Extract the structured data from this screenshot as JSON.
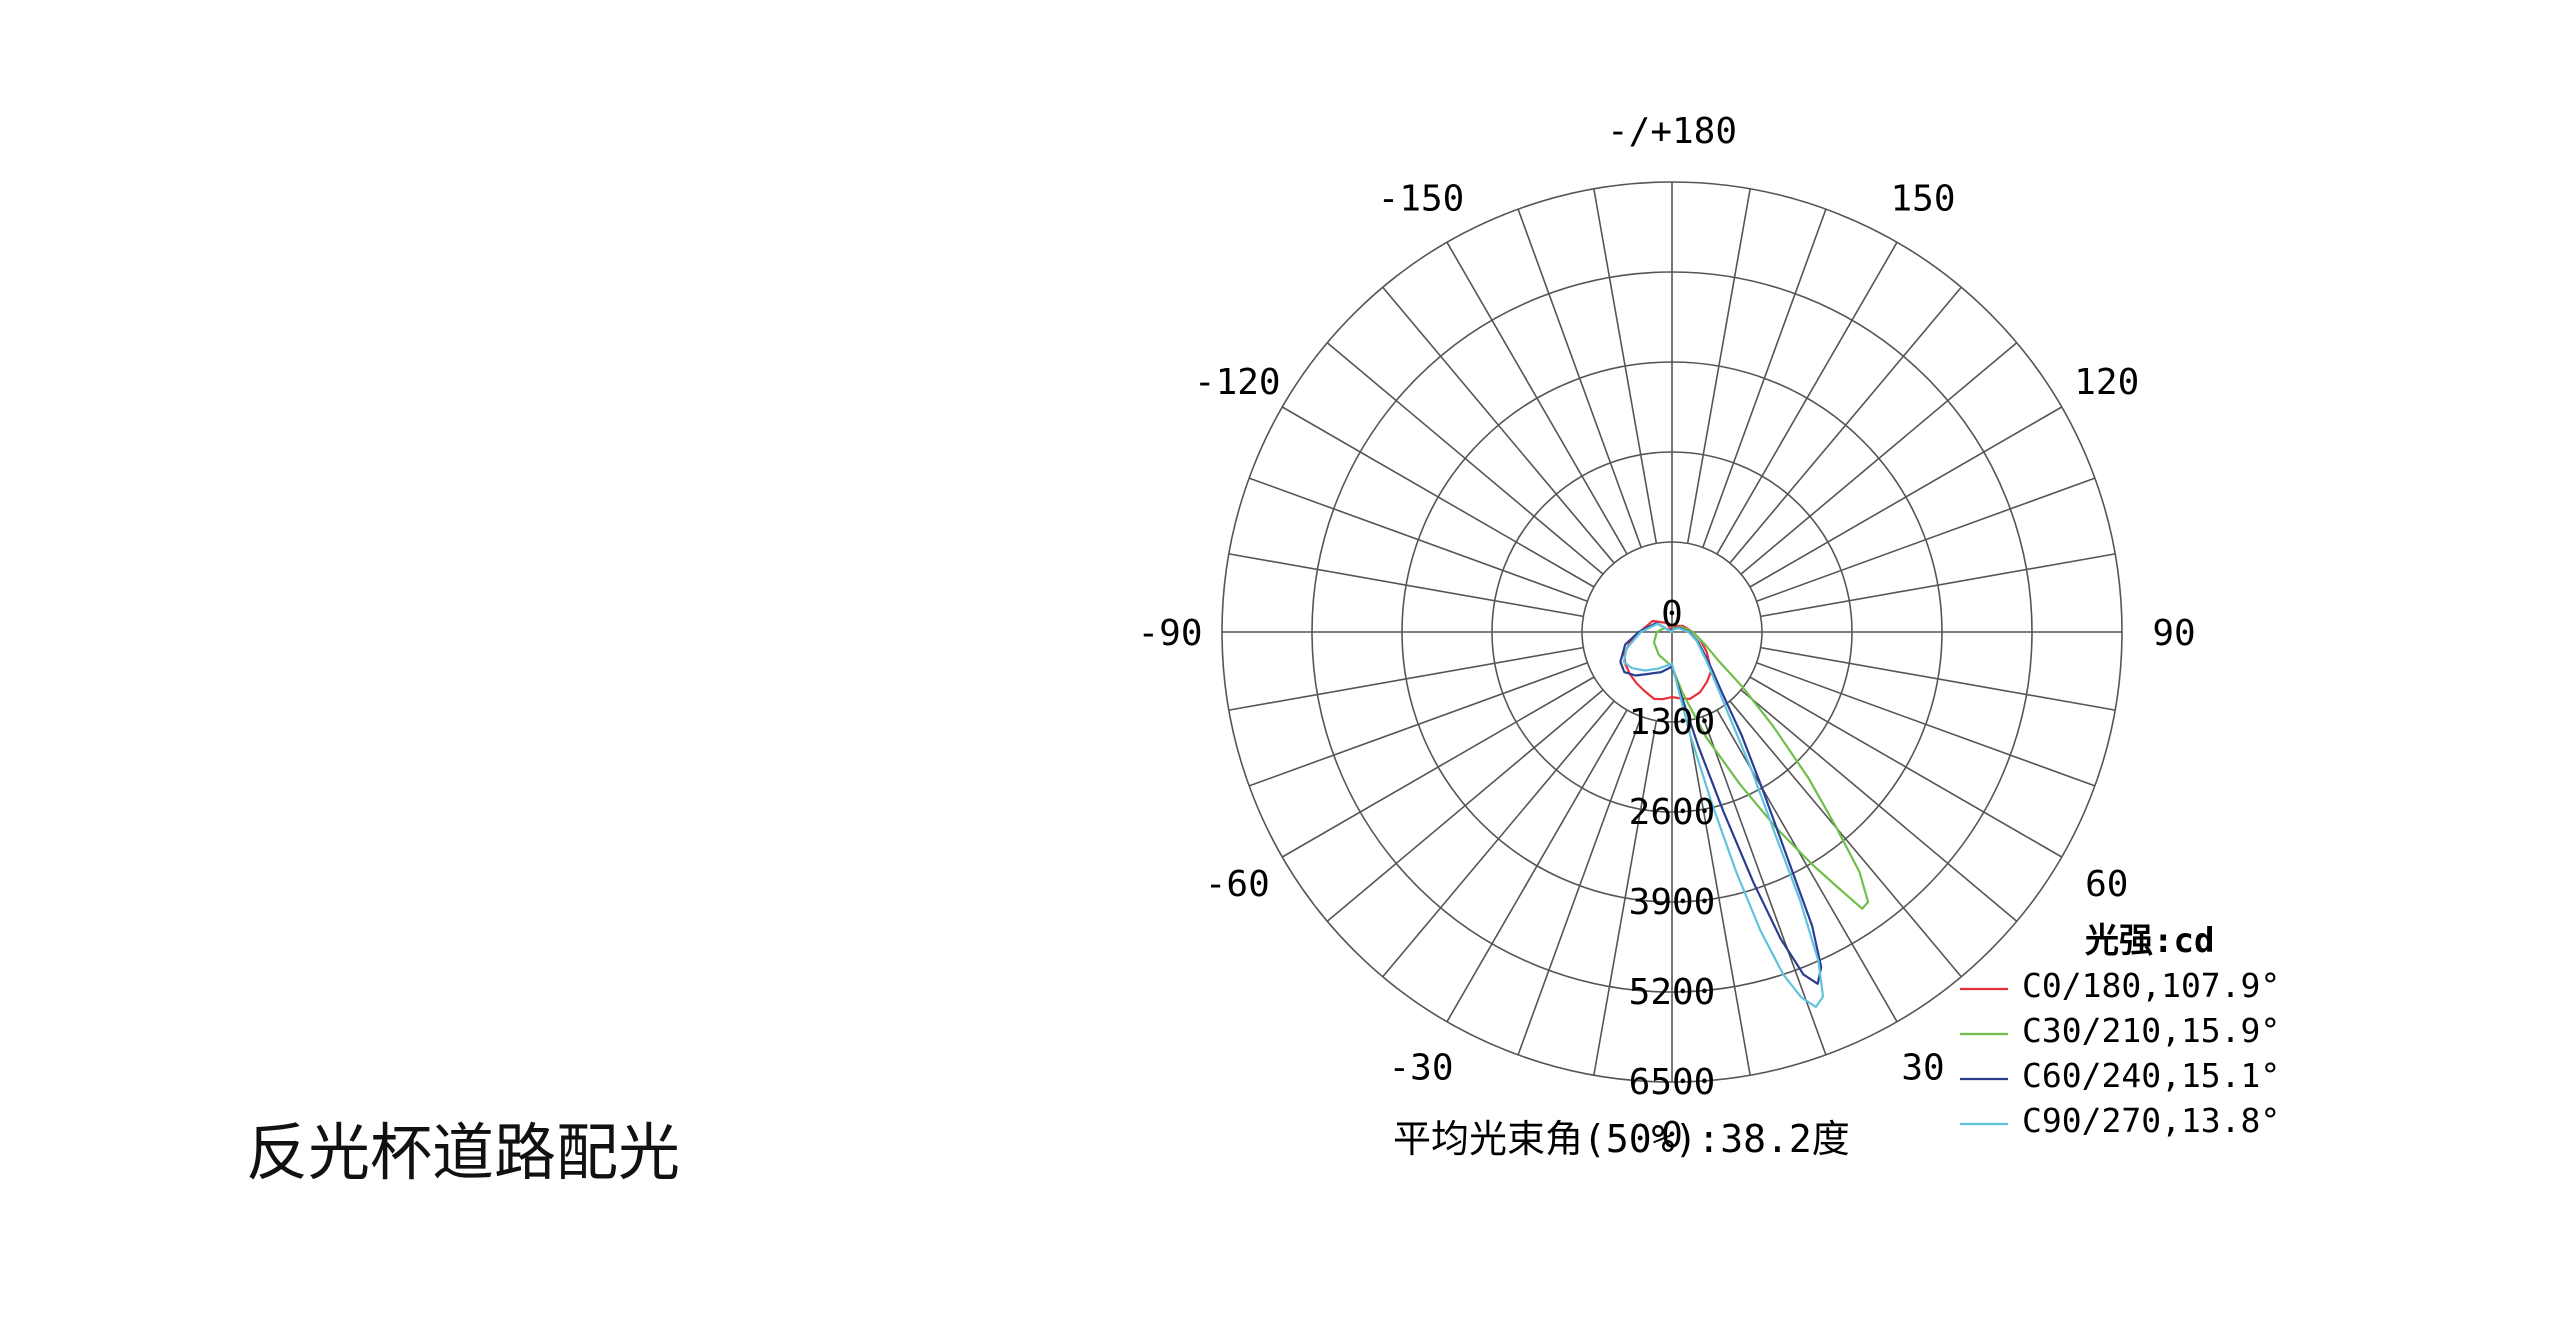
{
  "page": {
    "title": "反光杯道路配光"
  },
  "chart_data": {
    "type": "polar",
    "unit_label": "光强:cd",
    "beam_angle_label": "平均光束角(50%):38.2度",
    "radial_ticks": [
      0,
      1300,
      2600,
      3900,
      5200,
      6500
    ],
    "radial_tick_labels": [
      "0",
      "1300",
      "2600",
      "3900",
      "5200",
      "6500"
    ],
    "rmax": 6500,
    "angular_step_deg": 10,
    "angle_labels": [
      {
        "angle": 180,
        "label": "-/+180"
      },
      {
        "angle": 150,
        "label": "150"
      },
      {
        "angle": -150,
        "label": "-150"
      },
      {
        "angle": 120,
        "label": "120"
      },
      {
        "angle": -120,
        "label": "-120"
      },
      {
        "angle": 90,
        "label": "90"
      },
      {
        "angle": -90,
        "label": "-90"
      },
      {
        "angle": 60,
        "label": "60"
      },
      {
        "angle": -60,
        "label": "-60"
      },
      {
        "angle": 30,
        "label": "30"
      },
      {
        "angle": -30,
        "label": "-30"
      },
      {
        "angle": 0,
        "label": "0"
      }
    ],
    "series": [
      {
        "name": "C0/180,107.9°",
        "color": "#e8303a",
        "points": [
          [
            -180,
            0
          ],
          [
            -150,
            150
          ],
          [
            -120,
            320
          ],
          [
            -90,
            470
          ],
          [
            -75,
            640
          ],
          [
            -65,
            760
          ],
          [
            -55,
            820
          ],
          [
            -45,
            860
          ],
          [
            -35,
            900
          ],
          [
            -25,
            940
          ],
          [
            -15,
            1000
          ],
          [
            -8,
            980
          ],
          [
            0,
            940
          ],
          [
            8,
            970
          ],
          [
            15,
            1000
          ],
          [
            25,
            960
          ],
          [
            35,
            880
          ],
          [
            45,
            800
          ],
          [
            60,
            580
          ],
          [
            75,
            420
          ],
          [
            90,
            300
          ],
          [
            120,
            180
          ],
          [
            150,
            100
          ],
          [
            180,
            0
          ]
        ]
      },
      {
        "name": "C30/210,15.9°",
        "color": "#6fbf4a",
        "points": [
          [
            -180,
            0
          ],
          [
            -120,
            120
          ],
          [
            -90,
            220
          ],
          [
            -60,
            300
          ],
          [
            -30,
            380
          ],
          [
            0,
            500
          ],
          [
            10,
            900
          ],
          [
            18,
            1600
          ],
          [
            24,
            2400
          ],
          [
            28,
            3200
          ],
          [
            31,
            3900
          ],
          [
            33,
            4400
          ],
          [
            34.5,
            4850
          ],
          [
            36,
            4820
          ],
          [
            38,
            4400
          ],
          [
            40,
            3700
          ],
          [
            43,
            2900
          ],
          [
            47,
            2000
          ],
          [
            52,
            1300
          ],
          [
            58,
            800
          ],
          [
            70,
            500
          ],
          [
            90,
            300
          ],
          [
            120,
            150
          ],
          [
            150,
            60
          ],
          [
            180,
            0
          ]
        ]
      },
      {
        "name": "C60/240,15.1°",
        "color": "#2a3d8f",
        "points": [
          [
            -180,
            0
          ],
          [
            -120,
            260
          ],
          [
            -90,
            480
          ],
          [
            -75,
            700
          ],
          [
            -60,
            860
          ],
          [
            -50,
            900
          ],
          [
            -40,
            820
          ],
          [
            -30,
            700
          ],
          [
            -15,
            600
          ],
          [
            0,
            500
          ],
          [
            8,
            900
          ],
          [
            13,
            1700
          ],
          [
            16,
            2700
          ],
          [
            18,
            3800
          ],
          [
            19.5,
            4700
          ],
          [
            21,
            5300
          ],
          [
            22.5,
            5500
          ],
          [
            24,
            5300
          ],
          [
            25.5,
            4700
          ],
          [
            27,
            3700
          ],
          [
            30,
            2600
          ],
          [
            34,
            1800
          ],
          [
            40,
            1100
          ],
          [
            50,
            700
          ],
          [
            70,
            400
          ],
          [
            90,
            250
          ],
          [
            120,
            120
          ],
          [
            150,
            50
          ],
          [
            180,
            0
          ]
        ]
      },
      {
        "name": "C90/270,13.8°",
        "color": "#5fc3dd",
        "points": [
          [
            -180,
            0
          ],
          [
            -120,
            240
          ],
          [
            -90,
            450
          ],
          [
            -70,
            700
          ],
          [
            -58,
            820
          ],
          [
            -48,
            780
          ],
          [
            -35,
            680
          ],
          [
            -20,
            560
          ],
          [
            0,
            460
          ],
          [
            6,
            800
          ],
          [
            10,
            1500
          ],
          [
            13,
            2500
          ],
          [
            15,
            3600
          ],
          [
            16.5,
            4500
          ],
          [
            18,
            5200
          ],
          [
            19.5,
            5600
          ],
          [
            21,
            5800
          ],
          [
            22.5,
            5700
          ],
          [
            24,
            5200
          ],
          [
            25.5,
            4300
          ],
          [
            27,
            3300
          ],
          [
            30,
            2300
          ],
          [
            34,
            1500
          ],
          [
            40,
            1000
          ],
          [
            50,
            650
          ],
          [
            70,
            380
          ],
          [
            90,
            240
          ],
          [
            120,
            110
          ],
          [
            150,
            45
          ],
          [
            180,
            0
          ]
        ]
      }
    ]
  }
}
